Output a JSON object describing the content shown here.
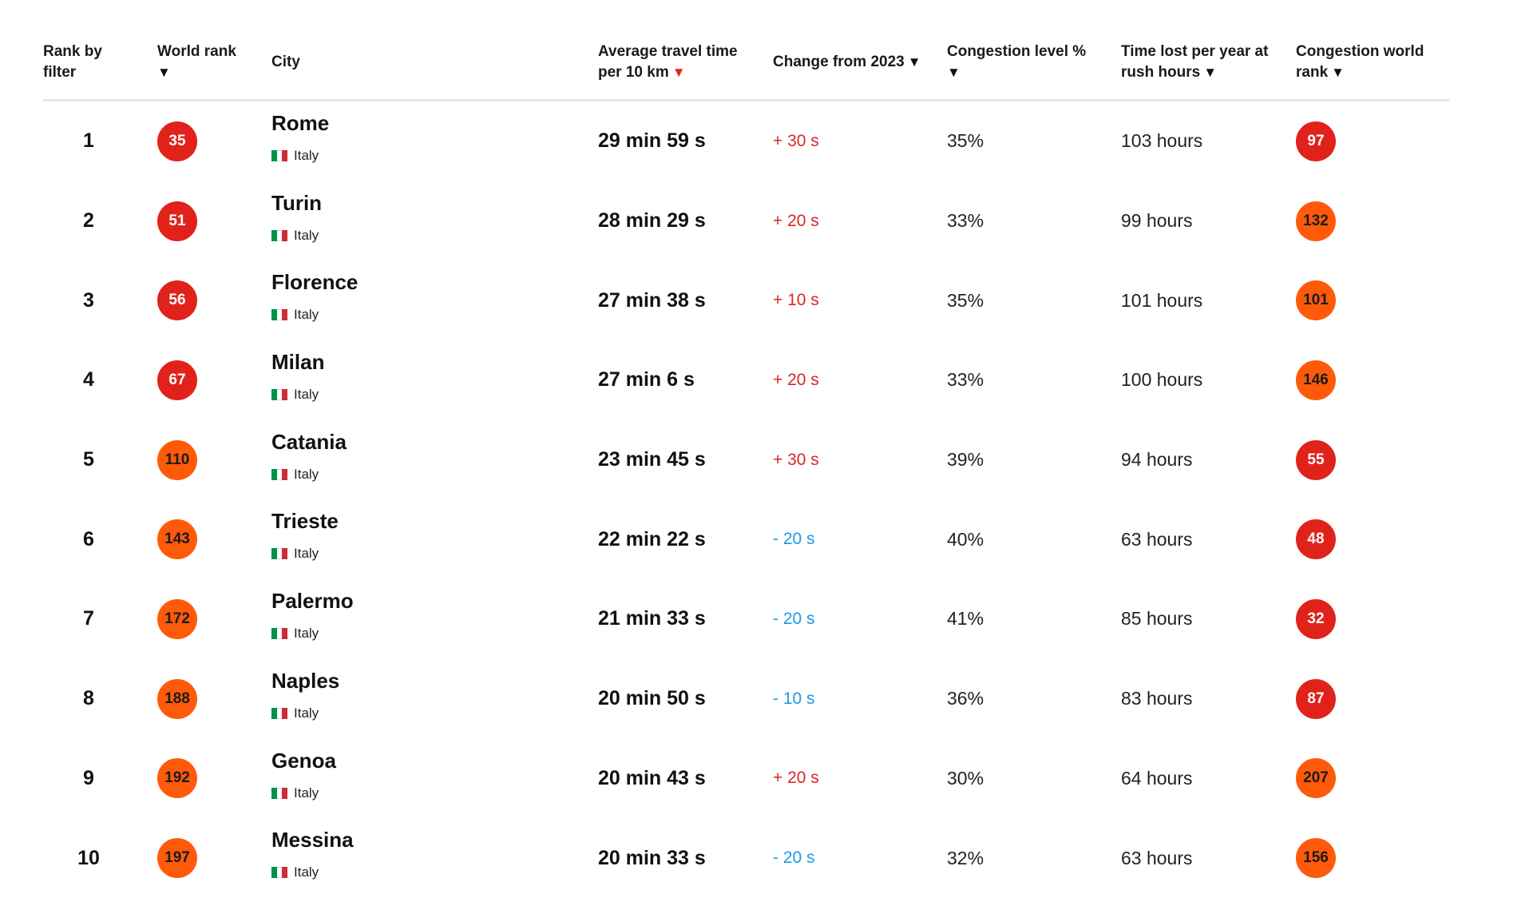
{
  "colors": {
    "badge_red": "#e0221b",
    "badge_orange": "#ff5a0a",
    "change_up": "#d62727",
    "change_down": "#1a9be3"
  },
  "header": {
    "rank_by_filter": "Rank by filter",
    "world_rank": "World rank",
    "city": "City",
    "avg_travel_time": "Average travel time per 10 km",
    "change_from_2023": "Change from 2023",
    "congestion_level": "Congestion level %",
    "time_lost": "Time lost per year at rush hours",
    "congestion_world_rank": "Congestion world rank",
    "sort_arrow": "▼",
    "active_sort_arrow": "▼"
  },
  "rows": [
    {
      "rank": "1",
      "world_rank": "35",
      "world_color": "red",
      "city": "Rome",
      "country": "Italy",
      "avg": "29 min 59 s",
      "change": "+ 30 s",
      "change_dir": "up",
      "congestion": "35%",
      "lost": "103 hours",
      "cwr": "97",
      "cwr_color": "red"
    },
    {
      "rank": "2",
      "world_rank": "51",
      "world_color": "red",
      "city": "Turin",
      "country": "Italy",
      "avg": "28 min 29 s",
      "change": "+ 20 s",
      "change_dir": "up",
      "congestion": "33%",
      "lost": "99 hours",
      "cwr": "132",
      "cwr_color": "orange"
    },
    {
      "rank": "3",
      "world_rank": "56",
      "world_color": "red",
      "city": "Florence",
      "country": "Italy",
      "avg": "27 min 38 s",
      "change": "+ 10 s",
      "change_dir": "up",
      "congestion": "35%",
      "lost": "101 hours",
      "cwr": "101",
      "cwr_color": "orange"
    },
    {
      "rank": "4",
      "world_rank": "67",
      "world_color": "red",
      "city": "Milan",
      "country": "Italy",
      "avg": "27 min 6 s",
      "change": "+ 20 s",
      "change_dir": "up",
      "congestion": "33%",
      "lost": "100 hours",
      "cwr": "146",
      "cwr_color": "orange"
    },
    {
      "rank": "5",
      "world_rank": "110",
      "world_color": "orange",
      "city": "Catania",
      "country": "Italy",
      "avg": "23 min 45 s",
      "change": "+ 30 s",
      "change_dir": "up",
      "congestion": "39%",
      "lost": "94 hours",
      "cwr": "55",
      "cwr_color": "red"
    },
    {
      "rank": "6",
      "world_rank": "143",
      "world_color": "orange",
      "city": "Trieste",
      "country": "Italy",
      "avg": "22 min 22 s",
      "change": "- 20 s",
      "change_dir": "down",
      "congestion": "40%",
      "lost": "63 hours",
      "cwr": "48",
      "cwr_color": "red"
    },
    {
      "rank": "7",
      "world_rank": "172",
      "world_color": "orange",
      "city": "Palermo",
      "country": "Italy",
      "avg": "21 min 33 s",
      "change": "- 20 s",
      "change_dir": "down",
      "congestion": "41%",
      "lost": "85 hours",
      "cwr": "32",
      "cwr_color": "red"
    },
    {
      "rank": "8",
      "world_rank": "188",
      "world_color": "orange",
      "city": "Naples",
      "country": "Italy",
      "avg": "20 min 50 s",
      "change": "- 10 s",
      "change_dir": "down",
      "congestion": "36%",
      "lost": "83 hours",
      "cwr": "87",
      "cwr_color": "red"
    },
    {
      "rank": "9",
      "world_rank": "192",
      "world_color": "orange",
      "city": "Genoa",
      "country": "Italy",
      "avg": "20 min 43 s",
      "change": "+ 20 s",
      "change_dir": "up",
      "congestion": "30%",
      "lost": "64 hours",
      "cwr": "207",
      "cwr_color": "orange"
    },
    {
      "rank": "10",
      "world_rank": "197",
      "world_color": "orange",
      "city": "Messina",
      "country": "Italy",
      "avg": "20 min 33 s",
      "change": "- 20 s",
      "change_dir": "down",
      "congestion": "32%",
      "lost": "63 hours",
      "cwr": "156",
      "cwr_color": "orange"
    }
  ]
}
